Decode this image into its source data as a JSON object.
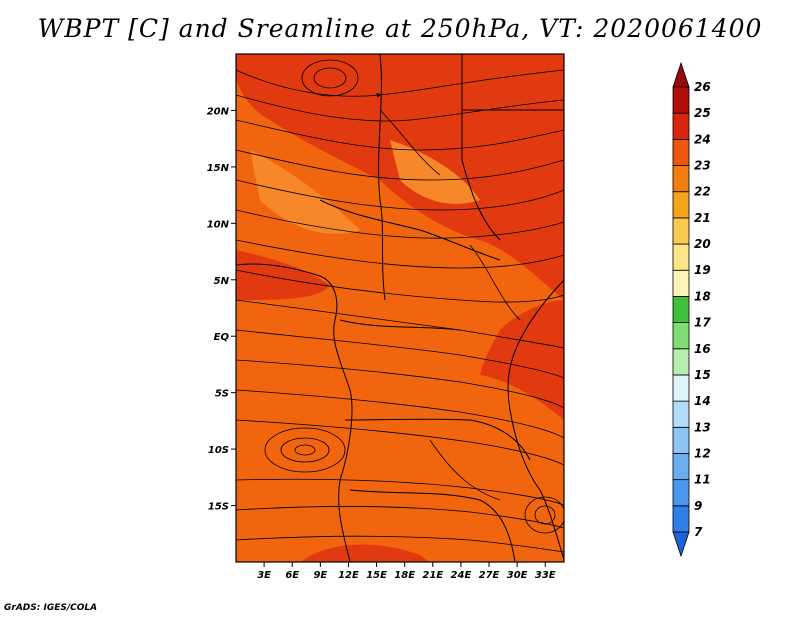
{
  "title": "WBPT [C] and Sreamline at 250hPa, VT: 2020061400",
  "footer": "GrADS: IGES/COLA",
  "map": {
    "lon_range": [
      0,
      35
    ],
    "lat_range": [
      -20,
      25
    ],
    "lat_ticks": [
      {
        "value": 20,
        "label": "20N"
      },
      {
        "value": 15,
        "label": "15N"
      },
      {
        "value": 10,
        "label": "10N"
      },
      {
        "value": 5,
        "label": "5N"
      },
      {
        "value": 0,
        "label": "EQ"
      },
      {
        "value": -5,
        "label": "5S"
      },
      {
        "value": -10,
        "label": "10S"
      },
      {
        "value": -15,
        "label": "15S"
      }
    ],
    "lon_ticks": [
      {
        "value": 3,
        "label": "3E"
      },
      {
        "value": 6,
        "label": "6E"
      },
      {
        "value": 9,
        "label": "9E"
      },
      {
        "value": 12,
        "label": "12E"
      },
      {
        "value": 15,
        "label": "15E"
      },
      {
        "value": 18,
        "label": "18E"
      },
      {
        "value": 21,
        "label": "21E"
      },
      {
        "value": 24,
        "label": "24E"
      },
      {
        "value": 27,
        "label": "27E"
      },
      {
        "value": 30,
        "label": "30E"
      },
      {
        "value": 33,
        "label": "33E"
      }
    ],
    "field_colors": {
      "base": "#f2650f",
      "warm": "#e23a10",
      "light": "#f7882a"
    }
  },
  "colorbar": {
    "levels": [
      "7",
      "9",
      "11",
      "12",
      "13",
      "14",
      "15",
      "16",
      "17",
      "18",
      "19",
      "20",
      "21",
      "22",
      "23",
      "24",
      "25",
      "26"
    ],
    "colors": [
      "#1f63d8",
      "#2f7fe8",
      "#4a98ee",
      "#6aaef2",
      "#8cc5f6",
      "#b3dbfa",
      "#e0f5fb",
      "#b9eeb1",
      "#7fdd74",
      "#3fbf3a",
      "#fff4b8",
      "#fde58a",
      "#fbca4f",
      "#f6a41b",
      "#f37c0e",
      "#ee560e",
      "#d9240e",
      "#b30f0a",
      "#9a0909"
    ]
  }
}
